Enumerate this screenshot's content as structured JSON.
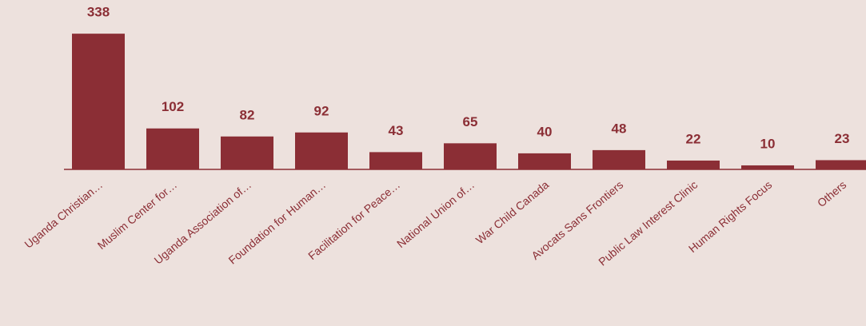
{
  "chart_data": {
    "type": "bar",
    "categories": [
      "Uganda Christian…",
      "Muslim Center for…",
      "Uganda Association of…",
      "Foundation for Human…",
      "Facilitation for Peace…",
      "National Union of…",
      "War Child Canada",
      "Avocats Sans Frontiers",
      "Public Law Interest Clinic",
      "Human Rights Focus",
      "Others"
    ],
    "values": [
      338,
      102,
      82,
      92,
      43,
      65,
      40,
      48,
      22,
      10,
      23
    ],
    "color": "#8b2e35",
    "ylim": [
      0,
      400
    ]
  }
}
